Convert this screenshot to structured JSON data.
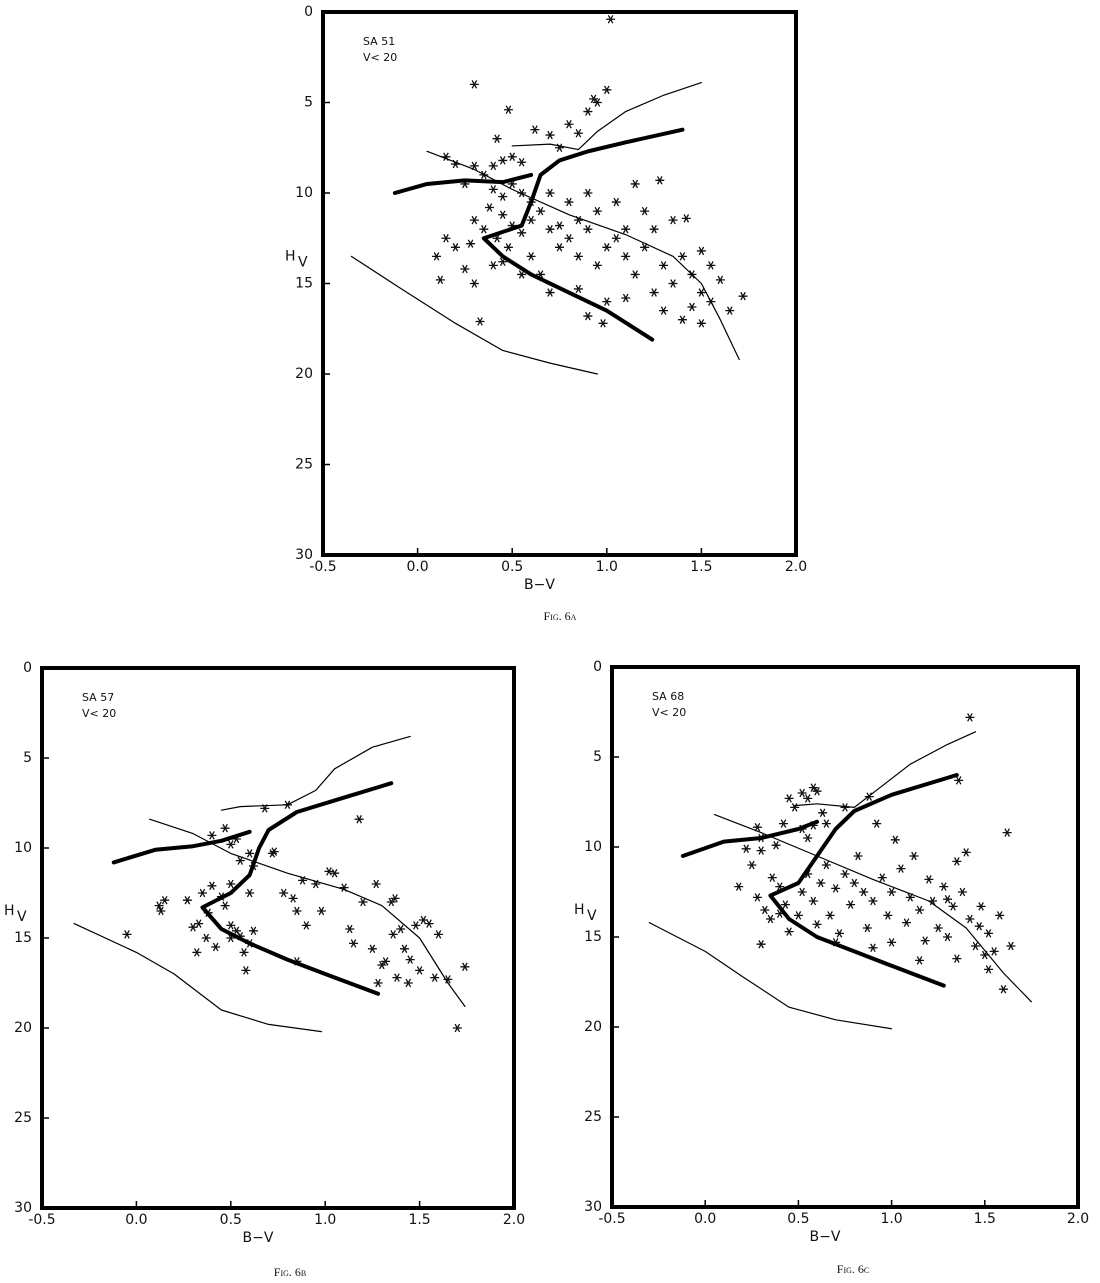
{
  "chart_data": [
    {
      "type": "scatter",
      "annotation": [
        "SA 51",
        "V< 20"
      ],
      "caption": "Fig. 6a",
      "xlabel": "B−V",
      "ylabel": "H",
      "ylabel_sub": "V",
      "xlim": [
        -0.5,
        2.0
      ],
      "ylim": [
        30,
        0
      ],
      "xticks": [
        -0.5,
        {
          "value": 0,
          "label": "0.0"
        },
        0.5,
        {
          "value": 1,
          "label": "1.0"
        },
        1.5,
        {
          "value": 2,
          "label": "2.0"
        }
      ],
      "yticks": [
        0,
        5,
        10,
        15,
        20,
        25,
        30
      ],
      "series": [
        {
          "kind": "points",
          "marker": "asterisk",
          "color": "#111111",
          "x": [
            1.02,
            0.3,
            0.48,
            0.95,
            1.0,
            0.9,
            0.93,
            0.7,
            0.8,
            0.62,
            0.85,
            0.75,
            0.42,
            0.45,
            0.4,
            0.5,
            0.55,
            0.35,
            0.3,
            0.2,
            0.15,
            0.25,
            0.4,
            0.45,
            0.5,
            0.55,
            0.6,
            0.38,
            0.45,
            0.5,
            0.55,
            0.6,
            0.65,
            0.7,
            0.42,
            0.48,
            0.35,
            0.3,
            0.28,
            0.2,
            0.15,
            0.1,
            0.12,
            0.25,
            0.3,
            0.4,
            0.45,
            0.55,
            0.6,
            0.65,
            0.7,
            0.75,
            0.8,
            0.85,
            0.9,
            0.95,
            1.0,
            1.05,
            1.1,
            1.15,
            1.2,
            1.25,
            1.3,
            1.35,
            1.4,
            1.45,
            1.5,
            1.55,
            1.6,
            1.65,
            1.72,
            1.5,
            1.42,
            1.35,
            1.28,
            1.15,
            1.05,
            0.95,
            0.9,
            0.85,
            0.8,
            0.75,
            0.7,
            1.2,
            1.1,
            1.3,
            1.4,
            1.5,
            1.0,
            0.9,
            0.85,
            0.33,
            1.25,
            1.55,
            1.1,
            0.98,
            1.45
          ],
          "values": [
            0.4,
            4.0,
            5.4,
            5.0,
            4.3,
            5.5,
            4.8,
            6.8,
            6.2,
            6.5,
            6.7,
            7.5,
            7.0,
            8.2,
            8.5,
            8.0,
            8.3,
            9.0,
            8.5,
            8.4,
            8.0,
            9.5,
            9.8,
            10.2,
            9.5,
            10.0,
            10.5,
            10.8,
            11.2,
            11.8,
            12.2,
            11.5,
            11.0,
            12.0,
            12.5,
            13.0,
            12.0,
            11.5,
            12.8,
            13.0,
            12.5,
            13.5,
            14.8,
            14.2,
            15.0,
            14.0,
            13.8,
            14.5,
            13.5,
            14.5,
            15.5,
            13.0,
            12.5,
            13.5,
            12.0,
            14.0,
            13.0,
            12.5,
            13.5,
            14.5,
            13.0,
            12.0,
            14.0,
            15.0,
            13.5,
            14.5,
            15.5,
            16.0,
            14.8,
            16.5,
            15.7,
            13.2,
            11.4,
            11.5,
            9.3,
            9.5,
            10.5,
            11.0,
            10.0,
            11.5,
            10.5,
            11.8,
            10.0,
            11.0,
            12.0,
            16.5,
            17.0,
            17.2,
            16.0,
            16.8,
            15.3,
            17.1,
            15.5,
            14.0,
            15.8,
            17.2,
            16.3
          ]
        },
        {
          "kind": "line",
          "line_width": 4,
          "color": "#000000",
          "x": [
            -0.12,
            0.05,
            0.25,
            0.45,
            0.6
          ],
          "values": [
            10.0,
            9.5,
            9.3,
            9.4,
            9.0
          ]
        },
        {
          "kind": "line",
          "line_width": 4,
          "color": "#000000",
          "x": [
            1.24,
            1.0,
            0.8,
            0.6,
            0.45,
            0.35,
            0.55,
            0.6,
            0.65,
            0.75,
            0.9,
            1.1,
            1.4
          ],
          "values": [
            18.1,
            16.5,
            15.5,
            14.5,
            13.5,
            12.5,
            11.8,
            10.5,
            9.0,
            8.2,
            7.7,
            7.2,
            6.5
          ]
        },
        {
          "kind": "line",
          "line_width": 1.2,
          "color": "#000000",
          "x": [
            -0.35,
            -0.1,
            0.2,
            0.45,
            0.7,
            0.95
          ],
          "values": [
            13.5,
            15.2,
            17.2,
            18.7,
            19.4,
            20.0
          ]
        },
        {
          "kind": "line",
          "line_width": 1.2,
          "color": "#000000",
          "x": [
            0.05,
            0.3,
            0.5,
            0.8,
            1.1,
            1.35,
            1.5,
            1.6,
            1.7
          ],
          "values": [
            7.7,
            8.7,
            9.8,
            11.2,
            12.3,
            13.5,
            15.0,
            17.0,
            19.2
          ]
        },
        {
          "kind": "line",
          "line_width": 1.2,
          "color": "#000000",
          "x": [
            0.5,
            0.7,
            0.85,
            0.95,
            1.1,
            1.3,
            1.5
          ],
          "values": [
            7.4,
            7.3,
            7.6,
            6.6,
            5.5,
            4.6,
            3.9
          ]
        }
      ]
    },
    {
      "type": "scatter",
      "annotation": [
        "SA 57",
        "V< 20"
      ],
      "caption": "Fig. 6b",
      "xlabel": "B−V",
      "ylabel": "H",
      "ylabel_sub": "V",
      "xlim": [
        -0.5,
        2.0
      ],
      "ylim": [
        30,
        0
      ],
      "xticks": [
        -0.5,
        {
          "value": 0,
          "label": "0.0"
        },
        0.5,
        {
          "value": 1,
          "label": "1.0"
        },
        1.5,
        {
          "value": 2,
          "label": "2.0"
        }
      ],
      "yticks": [
        0,
        5,
        10,
        15,
        20,
        25,
        30
      ],
      "series": [
        {
          "kind": "points",
          "marker": "asterisk",
          "color": "#111111",
          "x": [
            -0.05,
            0.12,
            0.15,
            0.13,
            0.27,
            0.3,
            0.33,
            0.37,
            0.32,
            0.35,
            0.38,
            0.4,
            0.45,
            0.47,
            0.42,
            0.5,
            0.5,
            0.53,
            0.55,
            0.57,
            0.58,
            0.6,
            0.62,
            0.55,
            0.6,
            0.62,
            0.5,
            0.53,
            0.47,
            0.4,
            0.5,
            0.6,
            0.68,
            0.72,
            0.73,
            0.78,
            0.8,
            0.83,
            0.85,
            0.85,
            0.88,
            0.9,
            0.95,
            0.98,
            1.02,
            1.05,
            1.1,
            1.13,
            1.15,
            1.18,
            1.2,
            1.25,
            1.28,
            1.3,
            1.35,
            1.37,
            1.4,
            1.42,
            1.38,
            1.44,
            1.45,
            1.48,
            1.5,
            1.52,
            1.55,
            1.58,
            1.6,
            1.65,
            1.7,
            1.74,
            1.32,
            1.27,
            1.36
          ],
          "values": [
            14.8,
            13.2,
            12.9,
            13.5,
            12.9,
            14.4,
            14.2,
            15.0,
            15.8,
            12.5,
            13.6,
            12.1,
            12.7,
            13.2,
            15.5,
            14.3,
            15.0,
            14.6,
            14.9,
            15.8,
            16.8,
            15.3,
            14.6,
            10.7,
            10.3,
            11.0,
            9.8,
            9.5,
            8.9,
            9.3,
            12.0,
            12.5,
            7.8,
            10.3,
            10.2,
            12.5,
            7.6,
            12.8,
            13.5,
            16.3,
            11.8,
            14.3,
            12.0,
            13.5,
            11.3,
            11.4,
            12.2,
            14.5,
            15.3,
            8.4,
            13.0,
            15.6,
            17.5,
            16.5,
            13.0,
            12.8,
            14.5,
            15.6,
            17.2,
            17.5,
            16.2,
            14.3,
            16.8,
            14.0,
            14.2,
            17.2,
            14.8,
            17.3,
            20.0,
            16.6,
            16.3,
            12.0,
            14.8
          ]
        },
        {
          "kind": "line",
          "line_width": 4,
          "color": "#000000",
          "x": [
            -0.12,
            0.1,
            0.3,
            0.45,
            0.6
          ],
          "values": [
            10.8,
            10.1,
            9.9,
            9.6,
            9.1
          ]
        },
        {
          "kind": "line",
          "line_width": 4,
          "color": "#000000",
          "x": [
            1.28,
            1.0,
            0.8,
            0.6,
            0.45,
            0.35,
            0.5,
            0.6,
            0.65,
            0.7,
            0.85,
            1.1,
            1.35
          ],
          "values": [
            18.1,
            17.0,
            16.2,
            15.3,
            14.5,
            13.3,
            12.5,
            11.5,
            10.0,
            9.0,
            8.0,
            7.2,
            6.4
          ]
        },
        {
          "kind": "line",
          "line_width": 1.2,
          "color": "#000000",
          "x": [
            -0.33,
            0,
            0.2,
            0.45,
            0.7,
            0.98
          ],
          "values": [
            14.2,
            15.8,
            17.0,
            19.0,
            19.8,
            20.2
          ]
        },
        {
          "kind": "line",
          "line_width": 1.2,
          "color": "#000000",
          "x": [
            0.07,
            0.3,
            0.5,
            0.8,
            1.1,
            1.3,
            1.5,
            1.65,
            1.74
          ],
          "values": [
            8.4,
            9.2,
            10.3,
            11.4,
            12.3,
            13.2,
            15.0,
            17.5,
            18.8
          ]
        },
        {
          "kind": "line",
          "line_width": 1.2,
          "color": "#000000",
          "x": [
            0.45,
            0.55,
            0.8,
            0.95,
            1.05,
            1.25,
            1.45
          ],
          "values": [
            7.9,
            7.7,
            7.6,
            6.8,
            5.6,
            4.4,
            3.8
          ]
        }
      ]
    },
    {
      "type": "scatter",
      "annotation": [
        "SA 68",
        "V< 20"
      ],
      "caption": "Fig. 6c",
      "xlabel": "B−V",
      "ylabel": "H",
      "ylabel_sub": "V",
      "xlim": [
        -0.5,
        2.0
      ],
      "ylim": [
        30,
        0
      ],
      "xticks": [
        -0.5,
        {
          "value": 0,
          "label": "0.0"
        },
        0.5,
        {
          "value": 1,
          "label": "1.0"
        },
        1.5,
        {
          "value": 2,
          "label": "2.0"
        }
      ],
      "yticks": [
        0,
        5,
        10,
        15,
        20,
        25,
        30
      ],
      "series": [
        {
          "kind": "points",
          "marker": "asterisk",
          "color": "#111111",
          "x": [
            1.42,
            1.36,
            0.58,
            0.6,
            0.52,
            0.55,
            0.48,
            0.45,
            0.65,
            0.63,
            0.58,
            0.55,
            0.52,
            0.42,
            0.28,
            0.3,
            0.38,
            0.3,
            0.22,
            0.18,
            0.25,
            0.28,
            0.32,
            0.3,
            0.36,
            0.4,
            0.43,
            0.45,
            0.5,
            0.52,
            0.55,
            0.58,
            0.6,
            0.62,
            0.65,
            0.67,
            0.7,
            0.72,
            0.75,
            0.78,
            0.8,
            0.82,
            0.85,
            0.87,
            0.9,
            0.92,
            0.95,
            0.98,
            1.0,
            1.02,
            1.05,
            1.08,
            1.1,
            1.12,
            1.15,
            1.18,
            1.2,
            1.22,
            1.25,
            1.28,
            1.3,
            1.33,
            1.35,
            1.38,
            1.4,
            1.42,
            1.45,
            1.48,
            1.5,
            1.52,
            1.55,
            1.58,
            1.6,
            1.62,
            1.64,
            1.35,
            1.3,
            0.88,
            0.75,
            0.4,
            0.35,
            0.7,
            0.9,
            1.0,
            1.15,
            1.47,
            1.52
          ],
          "values": [
            2.8,
            6.3,
            6.7,
            6.9,
            7.0,
            7.3,
            7.8,
            7.3,
            8.7,
            8.1,
            8.8,
            9.5,
            9.0,
            8.7,
            8.9,
            9.5,
            9.9,
            10.2,
            10.1,
            12.2,
            11.0,
            12.8,
            13.5,
            15.4,
            11.7,
            12.2,
            13.2,
            14.7,
            13.8,
            12.5,
            11.5,
            13.0,
            14.3,
            12.0,
            11.0,
            13.8,
            12.3,
            14.8,
            11.5,
            13.2,
            12.0,
            10.5,
            12.5,
            14.5,
            13.0,
            8.7,
            11.7,
            13.8,
            12.5,
            9.6,
            11.2,
            14.2,
            12.8,
            10.5,
            13.5,
            15.2,
            11.8,
            13.0,
            14.5,
            12.2,
            15.0,
            13.3,
            16.2,
            12.5,
            10.3,
            14.0,
            15.5,
            13.3,
            16.0,
            14.8,
            15.8,
            13.8,
            17.9,
            9.2,
            15.5,
            10.8,
            12.9,
            7.2,
            7.8,
            13.7,
            14.0,
            15.3,
            15.6,
            15.3,
            16.3,
            14.4,
            16.8
          ]
        },
        {
          "kind": "line",
          "line_width": 4,
          "color": "#000000",
          "x": [
            -0.12,
            0.1,
            0.3,
            0.5,
            0.6
          ],
          "values": [
            10.5,
            9.7,
            9.5,
            9.0,
            8.6
          ]
        },
        {
          "kind": "line",
          "line_width": 4,
          "color": "#000000",
          "x": [
            1.28,
            1.0,
            0.8,
            0.6,
            0.45,
            0.35,
            0.5,
            0.6,
            0.7,
            0.8,
            1.0,
            1.35
          ],
          "values": [
            17.7,
            16.6,
            15.8,
            15.0,
            14.0,
            12.7,
            12.0,
            10.5,
            9.0,
            8.0,
            7.1,
            6.0
          ]
        },
        {
          "kind": "line",
          "line_width": 1.2,
          "color": "#000000",
          "x": [
            -0.3,
            0,
            0.2,
            0.45,
            0.7,
            1.0
          ],
          "values": [
            14.2,
            15.8,
            17.2,
            18.9,
            19.6,
            20.1
          ]
        },
        {
          "kind": "line",
          "line_width": 1.2,
          "color": "#000000",
          "x": [
            0.05,
            0.3,
            0.6,
            0.9,
            1.2,
            1.4,
            1.6,
            1.75
          ],
          "values": [
            8.2,
            9.2,
            10.5,
            11.8,
            13.0,
            14.5,
            17.0,
            18.6
          ]
        },
        {
          "kind": "line",
          "line_width": 1.2,
          "color": "#000000",
          "x": [
            0.48,
            0.6,
            0.8,
            0.95,
            1.1,
            1.3,
            1.45
          ],
          "values": [
            7.7,
            7.6,
            7.8,
            6.6,
            5.4,
            4.3,
            3.6
          ]
        }
      ]
    }
  ]
}
